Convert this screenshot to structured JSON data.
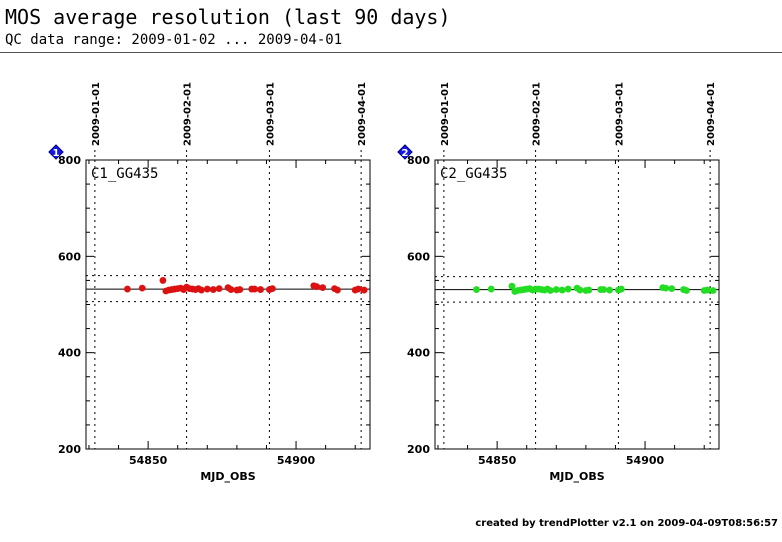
{
  "header": {
    "title": "MOS average resolution (last 90 days)",
    "subtitle": "QC data range: 2009-01-02 ... 2009-04-01"
  },
  "footer": {
    "text": "created by trendPlotter v2.1 on 2009-04-09T08:56:57"
  },
  "chart_data": [
    {
      "type": "scatter",
      "panel_number": "1",
      "title": "C1_GG435",
      "xlabel": "MJD_OBS",
      "ylabel": "",
      "xlim": [
        54829,
        54925
      ],
      "ylim": [
        200,
        800
      ],
      "x_ticks": [
        54850,
        54900
      ],
      "y_ticks": [
        200,
        400,
        600,
        800
      ],
      "date_ticks": [
        {
          "mjd": 54832,
          "label": "2009-01-01"
        },
        {
          "mjd": 54863,
          "label": "2009-02-01"
        },
        {
          "mjd": 54891,
          "label": "2009-03-01"
        },
        {
          "mjd": 54922,
          "label": "2009-04-01"
        }
      ],
      "reference_lines": {
        "mean": 532,
        "upper": 560,
        "lower": 506
      },
      "grid": "dotted vertical at month boundaries",
      "marker_color": "#dd1111",
      "x": [
        54843,
        54848,
        54855,
        54856,
        54857,
        54858,
        54859,
        54860,
        54861,
        54862,
        54863,
        54864,
        54865,
        54866,
        54867,
        54868,
        54870,
        54872,
        54874,
        54877,
        54878,
        54880,
        54881,
        54885,
        54886,
        54888,
        54891,
        54892,
        54906,
        54907,
        54909,
        54913,
        54914,
        54920,
        54921,
        54923
      ],
      "y": [
        532,
        534,
        550,
        528,
        530,
        531,
        532,
        533,
        534,
        531,
        536,
        533,
        532,
        531,
        533,
        530,
        532,
        531,
        533,
        535,
        531,
        530,
        531,
        532,
        532,
        531,
        531,
        533,
        539,
        537,
        535,
        533,
        530,
        530,
        532,
        530
      ]
    },
    {
      "type": "scatter",
      "panel_number": "2",
      "title": "C2_GG435",
      "xlabel": "MJD_OBS",
      "ylabel": "",
      "xlim": [
        54829,
        54925
      ],
      "ylim": [
        200,
        800
      ],
      "x_ticks": [
        54850,
        54900
      ],
      "y_ticks": [
        200,
        400,
        600,
        800
      ],
      "date_ticks": [
        {
          "mjd": 54832,
          "label": "2009-01-01"
        },
        {
          "mjd": 54863,
          "label": "2009-02-01"
        },
        {
          "mjd": 54891,
          "label": "2009-03-01"
        },
        {
          "mjd": 54922,
          "label": "2009-04-01"
        }
      ],
      "reference_lines": {
        "mean": 531,
        "upper": 558,
        "lower": 505
      },
      "grid": "dotted vertical at month boundaries",
      "marker_color": "#22dd22",
      "x": [
        54843,
        54848,
        54855,
        54856,
        54857,
        54858,
        54859,
        54860,
        54861,
        54862,
        54863,
        54864,
        54865,
        54866,
        54867,
        54868,
        54870,
        54872,
        54874,
        54877,
        54878,
        54880,
        54881,
        54885,
        54886,
        54888,
        54891,
        54892,
        54906,
        54907,
        54909,
        54913,
        54914,
        54920,
        54921,
        54923
      ],
      "y": [
        531,
        532,
        538,
        527,
        529,
        530,
        531,
        532,
        533,
        530,
        532,
        532,
        531,
        530,
        532,
        529,
        531,
        530,
        532,
        534,
        530,
        529,
        530,
        531,
        531,
        530,
        530,
        532,
        535,
        534,
        533,
        531,
        529,
        529,
        530,
        529
      ]
    }
  ]
}
